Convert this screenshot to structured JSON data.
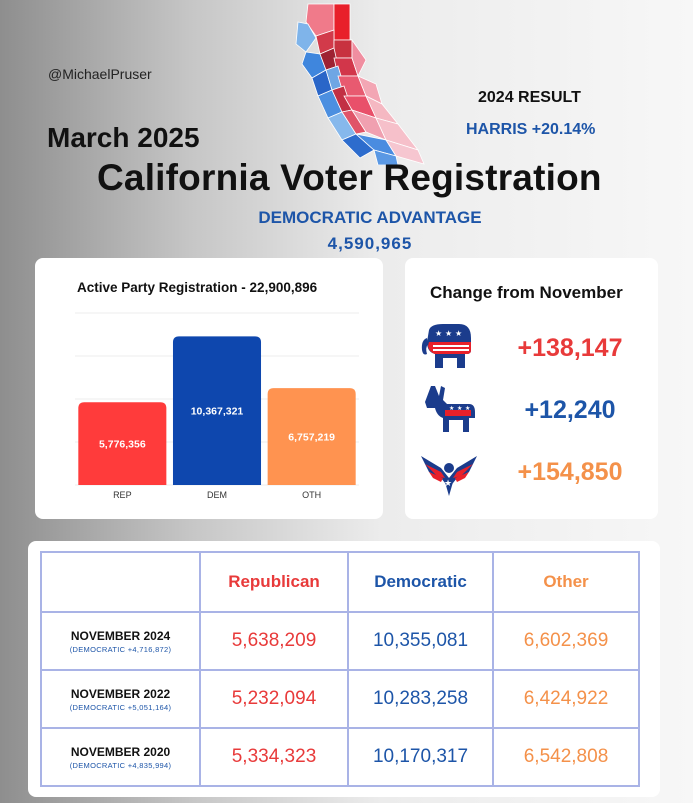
{
  "header": {
    "handle": "@MichaelPruser",
    "result_title": "2024 RESULT",
    "result_value": "HARRIS +20.14%",
    "date": "March 2025",
    "title": "California Voter Registration",
    "advantage_label": "DEMOCRATIC ADVANTAGE",
    "advantage_value": "4,590,965"
  },
  "colors": {
    "rep": "#ff3b3b",
    "dem": "#0e47ae",
    "oth": "#ff9350",
    "accent_blue": "#1d55a8"
  },
  "chart_data": {
    "type": "bar",
    "title": "Active Party Registration - 22,900,896",
    "categories": [
      "REP",
      "DEM",
      "OTH"
    ],
    "values": [
      5776356,
      10367321,
      6757219
    ],
    "value_labels": [
      "5,776,356",
      "10,367,321",
      "6,757,219"
    ],
    "colors": [
      "#ff3b3b",
      "#0e47ae",
      "#ff9350"
    ],
    "ylim": [
      0,
      12000000
    ],
    "grid": true
  },
  "change": {
    "title": "Change from November",
    "items": [
      {
        "party": "rep",
        "icon": "republican-elephant-icon",
        "value": "+138,147",
        "color": "#e83a3a"
      },
      {
        "party": "dem",
        "icon": "democratic-donkey-icon",
        "value": "+12,240",
        "color": "#1d55a8"
      },
      {
        "party": "oth",
        "icon": "eagle-icon",
        "value": "+154,850",
        "color": "#f4914a"
      }
    ]
  },
  "table": {
    "headers": [
      "Republican",
      "Democratic",
      "Other"
    ],
    "rows": [
      {
        "label": "NOVEMBER 2024",
        "sub": "(DEMOCRATIC +4,716,872)",
        "rep": "5,638,209",
        "dem": "10,355,081",
        "oth": "6,602,369"
      },
      {
        "label": "NOVEMBER 2022",
        "sub": "(DEMOCRATIC +5,051,164)",
        "rep": "5,232,094",
        "dem": "10,283,258",
        "oth": "6,424,922"
      },
      {
        "label": "NOVEMBER 2020",
        "sub": "(DEMOCRATIC +4,835,994)",
        "rep": "5,334,323",
        "dem": "10,170,317",
        "oth": "6,542,808"
      }
    ]
  }
}
